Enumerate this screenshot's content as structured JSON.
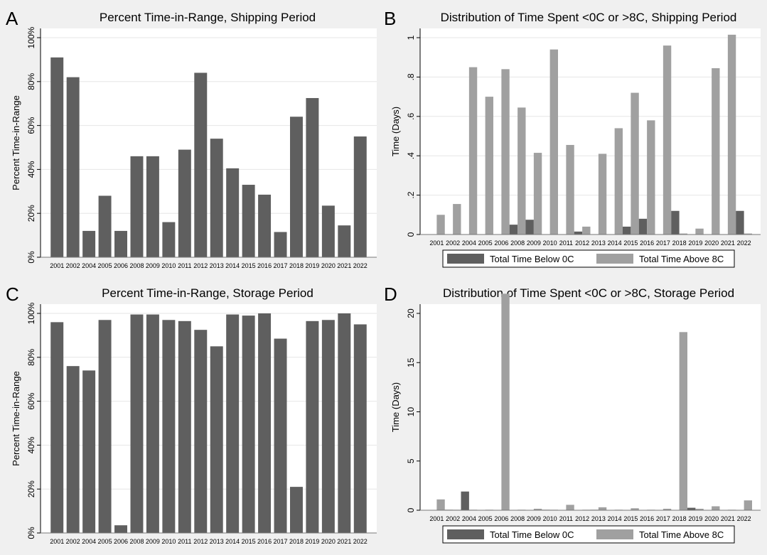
{
  "chart_data": [
    {
      "panel_label": "A",
      "type": "bar",
      "title": "Percent Time-in-Range, Shipping Period",
      "ylabel": "Percent Time-in-Range",
      "xlabel": "",
      "ylim": [
        0,
        100
      ],
      "yticks": [
        0,
        20,
        40,
        60,
        80,
        100
      ],
      "ytick_labels": [
        "0%",
        "20%",
        "40%",
        "60%",
        "80%",
        "100%"
      ],
      "grid": true,
      "categories": [
        "2001",
        "2002",
        "2004",
        "2005",
        "2006",
        "2008",
        "2009",
        "2010",
        "2011",
        "2012",
        "2013",
        "2014",
        "2015",
        "2016",
        "2017",
        "2018",
        "2019",
        "2020",
        "2021",
        "2022"
      ],
      "series": [
        {
          "values": [
            91,
            82,
            12,
            28,
            12,
            46,
            46,
            16,
            49,
            84,
            54,
            40.5,
            33,
            28.5,
            11.5,
            64,
            72.5,
            23.5,
            14.5,
            55
          ],
          "color": "#5f5f5f"
        }
      ]
    },
    {
      "panel_label": "B",
      "type": "bar",
      "title": "Distribution of Time Spent <0C or >8C, Shipping Period",
      "ylabel": "Time (Days)",
      "xlabel": "",
      "ylim": [
        0,
        1.05
      ],
      "yticks": [
        0,
        0.2,
        0.4,
        0.6,
        0.8,
        1
      ],
      "ytick_labels": [
        "0",
        ".2",
        ".4",
        ".6",
        ".8",
        "1"
      ],
      "grid": true,
      "legend": "bottom",
      "categories": [
        "2001",
        "2002",
        "2004",
        "2005",
        "2006",
        "2008",
        "2009",
        "2010",
        "2011",
        "2012",
        "2013",
        "2014",
        "2015",
        "2016",
        "2017",
        "2018",
        "2019",
        "2020",
        "2021",
        "2022"
      ],
      "series": [
        {
          "name": "Total Time Below 0C",
          "color": "#5f5f5f",
          "values": [
            0,
            0,
            0,
            0,
            0,
            0.05,
            0.075,
            0,
            0,
            0.015,
            0,
            0,
            0.04,
            0.08,
            0,
            0.12,
            0,
            0,
            0,
            0.12
          ]
        },
        {
          "name": "Total Time Above 8C",
          "color": "#a0a0a0",
          "values": [
            0.1,
            0.155,
            0.85,
            0.7,
            0.84,
            0.645,
            0.415,
            0.94,
            0.455,
            0.04,
            0.41,
            0.54,
            0.72,
            0.58,
            0.96,
            0.005,
            0.03,
            0.845,
            1.015,
            0.005
          ]
        }
      ]
    },
    {
      "panel_label": "C",
      "type": "bar",
      "title": "Percent Time-in-Range, Storage Period",
      "ylabel": "Percent Time-in-Range",
      "xlabel": "",
      "ylim": [
        0,
        100
      ],
      "yticks": [
        0,
        20,
        40,
        60,
        80,
        100
      ],
      "ytick_labels": [
        "0%",
        "20%",
        "40%",
        "60%",
        "80%",
        "100%"
      ],
      "grid": true,
      "categories": [
        "2001",
        "2002",
        "2004",
        "2005",
        "2006",
        "2008",
        "2009",
        "2010",
        "2011",
        "2012",
        "2013",
        "2014",
        "2015",
        "2016",
        "2017",
        "2018",
        "2019",
        "2020",
        "2021",
        "2022"
      ],
      "series": [
        {
          "values": [
            96,
            76,
            74,
            97,
            3.5,
            99.5,
            99.5,
            97,
            96.5,
            92.5,
            85,
            99.5,
            99,
            100,
            88.5,
            21,
            96.5,
            97,
            100,
            95
          ],
          "color": "#5f5f5f"
        }
      ]
    },
    {
      "panel_label": "D",
      "type": "bar",
      "title": "Distribution of Time Spent <0C or >8C, Storage Period",
      "ylabel": "Time (Days)",
      "xlabel": "",
      "ylim": [
        0,
        23
      ],
      "yticks": [
        0,
        5,
        10,
        15,
        20
      ],
      "ytick_labels": [
        "0",
        "5",
        "10",
        "15",
        "20"
      ],
      "grid": false,
      "legend": "bottom",
      "categories": [
        "2001",
        "2002",
        "2004",
        "2005",
        "2006",
        "2008",
        "2009",
        "2010",
        "2011",
        "2012",
        "2013",
        "2014",
        "2015",
        "2016",
        "2017",
        "2018",
        "2019",
        "2020",
        "2021",
        "2022"
      ],
      "series": [
        {
          "name": "Total Time Below 0C",
          "color": "#5f5f5f",
          "values": [
            0,
            0.05,
            1.9,
            0,
            0,
            0,
            0,
            0.05,
            0,
            0,
            0.05,
            0,
            0,
            0,
            0,
            0,
            0.25,
            0,
            0,
            0
          ]
        },
        {
          "name": "Total Time Above 8C",
          "color": "#a0a0a0",
          "values": [
            1.1,
            0.05,
            0.05,
            0.05,
            22,
            0.05,
            0.15,
            0.05,
            0.55,
            0.05,
            0.3,
            0.05,
            0.2,
            0.05,
            0.15,
            18.1,
            0.15,
            0.4,
            0.05,
            1.0
          ]
        }
      ]
    }
  ]
}
